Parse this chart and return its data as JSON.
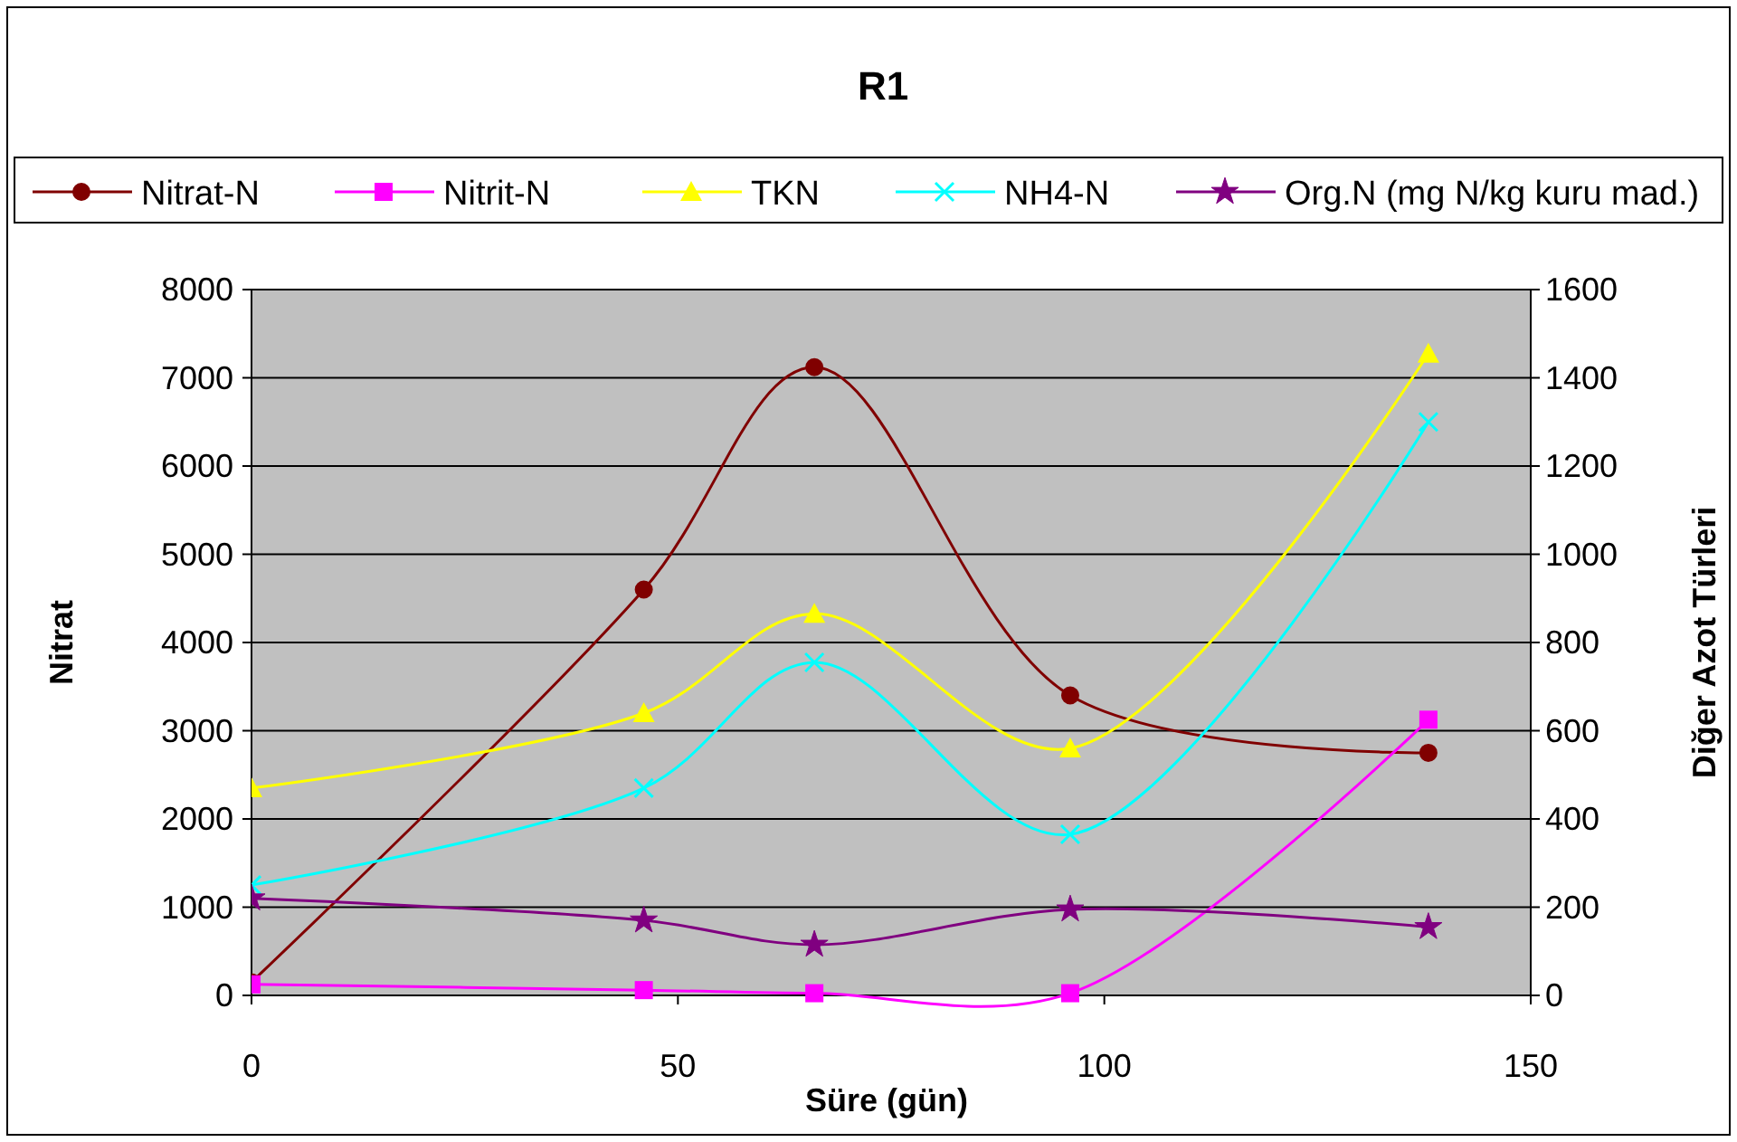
{
  "chart_data": {
    "type": "line",
    "title": "R1",
    "xlabel": "Süre (gün)",
    "ylabel": "Nitrat",
    "y2label": "Diğer Azot Türleri",
    "x": [
      0,
      46,
      66,
      96,
      138
    ],
    "xlim": [
      0,
      150
    ],
    "xticks": [
      0,
      50,
      100,
      150
    ],
    "ylim": [
      0,
      8000
    ],
    "yticks": [
      0,
      1000,
      2000,
      3000,
      4000,
      5000,
      6000,
      7000,
      8000
    ],
    "y2lim": [
      0,
      1600
    ],
    "y2ticks": [
      0,
      200,
      400,
      600,
      800,
      1000,
      1200,
      1400,
      1600
    ],
    "grid": "y",
    "legend": "top",
    "series": [
      {
        "name": "Nitrat-N",
        "color": "#800000",
        "marker": "circle",
        "values": [
          150,
          4600,
          7120,
          3400,
          2750
        ]
      },
      {
        "name": "Nitrit-N",
        "color": "#ff00ff",
        "marker": "square",
        "axis": "y2",
        "values": [
          25,
          12,
          5,
          5,
          625
        ]
      },
      {
        "name": "TKN",
        "color": "#ffff00",
        "marker": "triangle",
        "axis": "y2",
        "values": [
          470,
          640,
          865,
          560,
          1455
        ]
      },
      {
        "name": "NH4-N",
        "color": "#00ffff",
        "marker": "cross",
        "axis": "y2",
        "values": [
          250,
          470,
          755,
          365,
          1300
        ]
      },
      {
        "name": "Org.N (mg N/kg kuru mad.)",
        "color": "#800080",
        "marker": "star",
        "axis": "y2",
        "values": [
          220,
          170,
          115,
          195,
          155
        ]
      }
    ]
  }
}
